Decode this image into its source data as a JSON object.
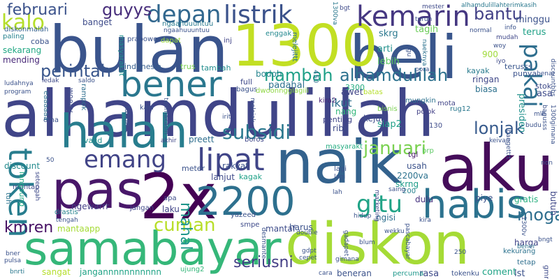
{
  "words": [
    {
      "text": "alhamdulillah",
      "color": "#404588"
    },
    {
      "text": "bulan",
      "color": "#3a548c"
    },
    {
      "text": "beli",
      "color": "#39568c"
    },
    {
      "text": "1300",
      "color": "#c2df23"
    },
    {
      "text": "aku",
      "color": "#450d5a"
    },
    {
      "text": "naik",
      "color": "#33628d"
    },
    {
      "text": "2x",
      "color": "#440154"
    },
    {
      "text": "pas",
      "color": "#481769"
    },
    {
      "text": "halah",
      "color": "#287d8e"
    },
    {
      "text": "bener",
      "color": "#2a778e"
    },
    {
      "text": "samabayar",
      "color": "#35b779"
    },
    {
      "text": "diskon",
      "color": "#a5db36"
    },
    {
      "text": "2200",
      "color": "#2d708e"
    },
    {
      "text": "habis",
      "color": "#2c728e"
    },
    {
      "text": "kemarin",
      "color": "#453781"
    },
    {
      "text": "listrik",
      "color": "#3b528b"
    },
    {
      "text": "depan",
      "color": "#31678e"
    },
    {
      "text": "token",
      "color": "#287d8e"
    },
    {
      "text": "lipat",
      "color": "#404588"
    },
    {
      "text": "emang",
      "color": "#414487"
    },
    {
      "text": "gitu",
      "color": "#20a386"
    },
    {
      "text": "cuman",
      "color": "#b8de29"
    },
    {
      "text": "pakai",
      "color": "#2e6e8e"
    },
    {
      "text": "subsidi",
      "color": "#2a788e"
    },
    {
      "text": "januari",
      "color": "#7ad151"
    },
    {
      "text": "lonjak",
      "color": "#375a8c"
    },
    {
      "text": "perintah",
      "color": "#39568c"
    },
    {
      "text": "kalo",
      "color": "#b5de2b"
    },
    {
      "text": "februari",
      "color": "#3b528b"
    },
    {
      "text": "guyys",
      "color": "#472d7b"
    },
    {
      "text": "bantu",
      "color": "#424086"
    },
    {
      "text": "nambah",
      "color": "#1fa088"
    },
    {
      "text": "alhamdulilah",
      "color": "#2c718e"
    },
    {
      "text": "moga",
      "color": "#2e6e8e"
    },
    {
      "text": "kmren",
      "color": "#471164"
    },
    {
      "text": "mahal",
      "color": "#1f968b"
    },
    {
      "text": "seriusni",
      "color": "#433e85"
    },
    {
      "text": "minggu",
      "color": "#3b518b"
    },
    {
      "text": "terus",
      "color": "#1fa187"
    },
    {
      "text": "900",
      "color": "#9fda3a"
    },
    {
      "text": "tagih",
      "color": "#6ccd5a"
    },
    {
      "text": "skrg",
      "color": "#2a788e"
    },
    {
      "text": "arti",
      "color": "#21918c"
    },
    {
      "text": "bodoh",
      "color": "#25848e"
    },
    {
      "text": "lebih",
      "color": "#5ec962"
    },
    {
      "text": "banget",
      "color": "#3e4c8a"
    },
    {
      "text": "coba",
      "color": "#3b528b"
    },
    {
      "text": "sekarang",
      "color": "#22a884"
    },
    {
      "text": "mending",
      "color": "#482878"
    },
    {
      "text": "discount",
      "color": "#238a8d"
    },
    {
      "text": "paling",
      "color": "#26828e"
    },
    {
      "text": "diskonmalah",
      "color": "#34618d"
    },
    {
      "text": "indonesia",
      "color": "#365d8d"
    },
    {
      "text": "tambah",
      "color": "#228d8d"
    },
    {
      "text": "trus",
      "color": "#7ad151"
    },
    {
      "text": "prabowo",
      "color": "#3b528b"
    },
    {
      "text": "ngaahuuuntuu",
      "color": "#297a8e"
    },
    {
      "text": "inj",
      "color": "#414487"
    },
    {
      "text": "enggak",
      "color": "#23888e"
    },
    {
      "text": "dapat",
      "color": "#9bd93c"
    },
    {
      "text": "masyarakat",
      "color": "#21918c"
    },
    {
      "text": "melejittt",
      "color": "#2c728e"
    },
    {
      "text": "full",
      "color": "#3e4989"
    },
    {
      "text": "bagus",
      "color": "#3b528b"
    },
    {
      "text": "padahal",
      "color": "#2d708e"
    },
    {
      "text": "awet",
      "color": "#414487"
    },
    {
      "text": "ikut",
      "color": "#2e6f8e"
    },
    {
      "text": "nang",
      "color": "#32b67a"
    },
    {
      "text": "penting",
      "color": "#404588"
    },
    {
      "text": "ribu",
      "color": "#3e4a89"
    },
    {
      "text": "kejut",
      "color": "#3e4c8a"
    },
    {
      "text": "siap2",
      "color": "#1fa088"
    },
    {
      "text": "kira2",
      "color": "#482576"
    },
    {
      "text": "3300",
      "color": "#26ad81"
    },
    {
      "text": "450",
      "color": "#2e6e8e"
    },
    {
      "text": "batas",
      "color": "#b5de2b"
    },
    {
      "text": "dwoonngglagiii",
      "color": "#8fd744"
    },
    {
      "text": "kayak",
      "color": "#297b8e"
    },
    {
      "text": "ringan",
      "color": "#3f4788"
    },
    {
      "text": "biasa",
      "color": "#2d718e"
    },
    {
      "text": "punya",
      "color": "#3b528b"
    },
    {
      "text": "terusss",
      "color": "#39568c"
    },
    {
      "text": "presiden",
      "color": "#21918c"
    },
    {
      "text": "asa",
      "color": "#3e4a89"
    },
    {
      "text": "stok",
      "color": "#3e4a89"
    },
    {
      "text": "rug12",
      "color": "#2a778e"
    },
    {
      "text": "mota",
      "color": "#414487"
    },
    {
      "text": "pojok",
      "color": "#424086"
    },
    {
      "text": "mungkin",
      "color": "#2c718e"
    },
    {
      "text": "bisnis",
      "color": "#7ad151"
    },
    {
      "text": "130",
      "color": "#3e4c8a"
    },
    {
      "text": "masyarakt",
      "color": "#26ad81"
    },
    {
      "text": "boros",
      "color": "#3f4788"
    },
    {
      "text": "valid",
      "color": "#21908d"
    },
    {
      "text": "preett",
      "color": "#2e6e8e"
    },
    {
      "text": "rakyat",
      "color": "#3b528b"
    },
    {
      "text": "meter",
      "color": "#3b528b"
    },
    {
      "text": "lanjut",
      "color": "#3e4a89"
    },
    {
      "text": "kagak",
      "color": "#1fa187"
    },
    {
      "text": "tgl",
      "color": "#48186a"
    },
    {
      "text": "brp",
      "color": "#5cc863"
    },
    {
      "text": "usah",
      "color": "#3b528b"
    },
    {
      "text": "2200va",
      "color": "#2c728e"
    },
    {
      "text": "skrng",
      "color": "#1e9c89"
    },
    {
      "text": "lagi",
      "color": "#3b528b"
    },
    {
      "text": "200",
      "color": "#26828e"
    },
    {
      "text": "dulu",
      "color": "#46327e"
    },
    {
      "text": "piye",
      "color": "#3b528b"
    },
    {
      "text": "gratis",
      "color": "#29af7f"
    },
    {
      "text": "butuh",
      "color": "#3f4788"
    },
    {
      "text": "harus",
      "color": "#3b528b"
    },
    {
      "text": "mantaf",
      "color": "#3e4c8a"
    },
    {
      "text": "ngisi",
      "color": "#2e6e8e"
    },
    {
      "text": "laku",
      "color": "#414487"
    },
    {
      "text": "ngewarrr",
      "color": "#433e85"
    },
    {
      "text": "mantaapp",
      "color": "#a5db36"
    },
    {
      "text": "drastis",
      "color": "#26828e"
    },
    {
      "text": "smpe",
      "color": "#3e4a89"
    },
    {
      "text": "yazeed",
      "color": "#3b528b"
    },
    {
      "text": "jangan",
      "color": "#3f4788"
    },
    {
      "text": "apa",
      "color": "#3e4c8a"
    },
    {
      "text": "sangat",
      "color": "#b5de2b"
    },
    {
      "text": "jangannnnnnnnnnn",
      "color": "#20a386"
    },
    {
      "text": "ujung2",
      "color": "#34b679"
    },
    {
      "text": "harga",
      "color": "#414487"
    },
    {
      "text": "kekurang",
      "color": "#2c728e"
    },
    {
      "text": "coment",
      "color": "#20a386"
    },
    {
      "text": "rasa",
      "color": "#3e4a89"
    },
    {
      "text": "lst",
      "color": "#3b528b"
    },
    {
      "text": "beneran",
      "color": "#3b528b"
    },
    {
      "text": "tokenku",
      "color": "#3b528b"
    },
    {
      "text": "percuma",
      "color": "#1f988b"
    },
    {
      "text": "gmn",
      "color": "#3e4a89"
    },
    {
      "text": "tetap",
      "color": "#2e6e8e"
    },
    {
      "text": "bener",
      "color": "#2c728e"
    },
    {
      "text": "bngt",
      "color": "#3b528b"
    },
    {
      "text": "pulsa",
      "color": "#3b528b"
    },
    {
      "text": "bner",
      "color": "#3b528b"
    },
    {
      "text": "bnrti",
      "color": "#2a788e"
    },
    {
      "text": "tuh",
      "color": "#2c728e"
    },
    {
      "text": "mantap",
      "color": "#3e4c8a"
    },
    {
      "text": "oma",
      "color": "#3b528b"
    },
    {
      "text": "eaaaaaa",
      "color": "#2e6e8e"
    },
    {
      "text": "info",
      "color": "#3b528b"
    },
    {
      "text": "mudah",
      "color": "#3f4788"
    },
    {
      "text": "woy",
      "color": "#3b528b"
    },
    {
      "text": "iyo",
      "color": "#3e4a89"
    },
    {
      "text": "normal",
      "color": "#3b528b"
    },
    {
      "text": "turun",
      "color": "#3b528b"
    },
    {
      "text": "bgt",
      "color": "#3e4a89"
    },
    {
      "text": "mester",
      "color": "#3e4a89"
    },
    {
      "text": "1300va",
      "color": "#2a788e"
    },
    {
      "text": "alhamdulillahterimkasih",
      "color": "#2a788e"
    },
    {
      "text": "mlh",
      "color": "#3b528b"
    },
    {
      "text": "budu",
      "color": "#3b528b"
    },
    {
      "text": "tahun",
      "color": "#3b528b"
    },
    {
      "text": "kasi",
      "color": "#3b528b"
    },
    {
      "text": "rampok",
      "color": "#2e6e8e"
    },
    {
      "text": "woeyy",
      "color": "#3e4c8a"
    },
    {
      "text": "saldo",
      "color": "#3b528b"
    },
    {
      "text": "ledak",
      "color": "#3e4a89"
    },
    {
      "text": "ludahnya",
      "color": "#3b528b"
    },
    {
      "text": "program",
      "color": "#3b528b"
    },
    {
      "text": "akhir",
      "color": "#3f4788"
    },
    {
      "text": "melojak",
      "color": "#3b528b"
    },
    {
      "text": "irit",
      "color": "#3b528b"
    },
    {
      "text": "terimakasih",
      "color": "#3b528b"
    },
    {
      "text": "pora",
      "color": "#3b528b"
    },
    {
      "text": "naeknya",
      "color": "#2c728e"
    },
    {
      "text": "langsung",
      "color": "#22a884"
    },
    {
      "text": "setengah",
      "color": "#3e4a89"
    },
    {
      "text": "50",
      "color": "#3b528b"
    },
    {
      "text": "tengah",
      "color": "#3b528b"
    },
    {
      "text": "hidup",
      "color": "#3b528b"
    },
    {
      "text": "saing",
      "color": "#3b528b"
    },
    {
      "text": "marketing",
      "color": "#3f4788"
    },
    {
      "text": "lagi",
      "color": "#3b528b"
    },
    {
      "text": "lah",
      "color": "#3b528b"
    },
    {
      "text": "gadapet",
      "color": "#3b528b"
    },
    {
      "text": "desmante",
      "color": "#3b528b"
    },
    {
      "text": "double",
      "color": "#3b528b"
    },
    {
      "text": "cepet",
      "color": "#3b528b"
    },
    {
      "text": "gdpt",
      "color": "#3b528b"
    },
    {
      "text": "cara",
      "color": "#3b528b"
    },
    {
      "text": "gimana",
      "color": "#3b528b"
    },
    {
      "text": "wekku",
      "color": "#3b528b"
    },
    {
      "text": "kira",
      "color": "#3b528b"
    },
    {
      "text": "pascabayar",
      "color": "#3b528b"
    },
    {
      "text": "blum",
      "color": "#3b528b"
    },
    {
      "text": "250",
      "color": "#3b528b"
    },
    {
      "text": "1300v",
      "color": "#3b528b"
    },
    {
      "text": "keivan",
      "color": "#3b528b"
    },
    {
      "text": "non",
      "color": "#3b528b"
    },
    {
      "text": "bangetttt",
      "color": "#3b528b"
    },
    {
      "text": "1300gimana",
      "color": "#3b528b"
    },
    {
      "text": "discountbbs",
      "color": "#3b528b"
    },
    {
      "text": "bagusss",
      "color": "#3b528b"
    },
    {
      "text": "benar",
      "color": "#3b528b"
    },
    {
      "text": "1gu",
      "color": "#3b528b"
    },
    {
      "text": "ngaahuuuntuu",
      "color": "#3b528b"
    }
  ]
}
